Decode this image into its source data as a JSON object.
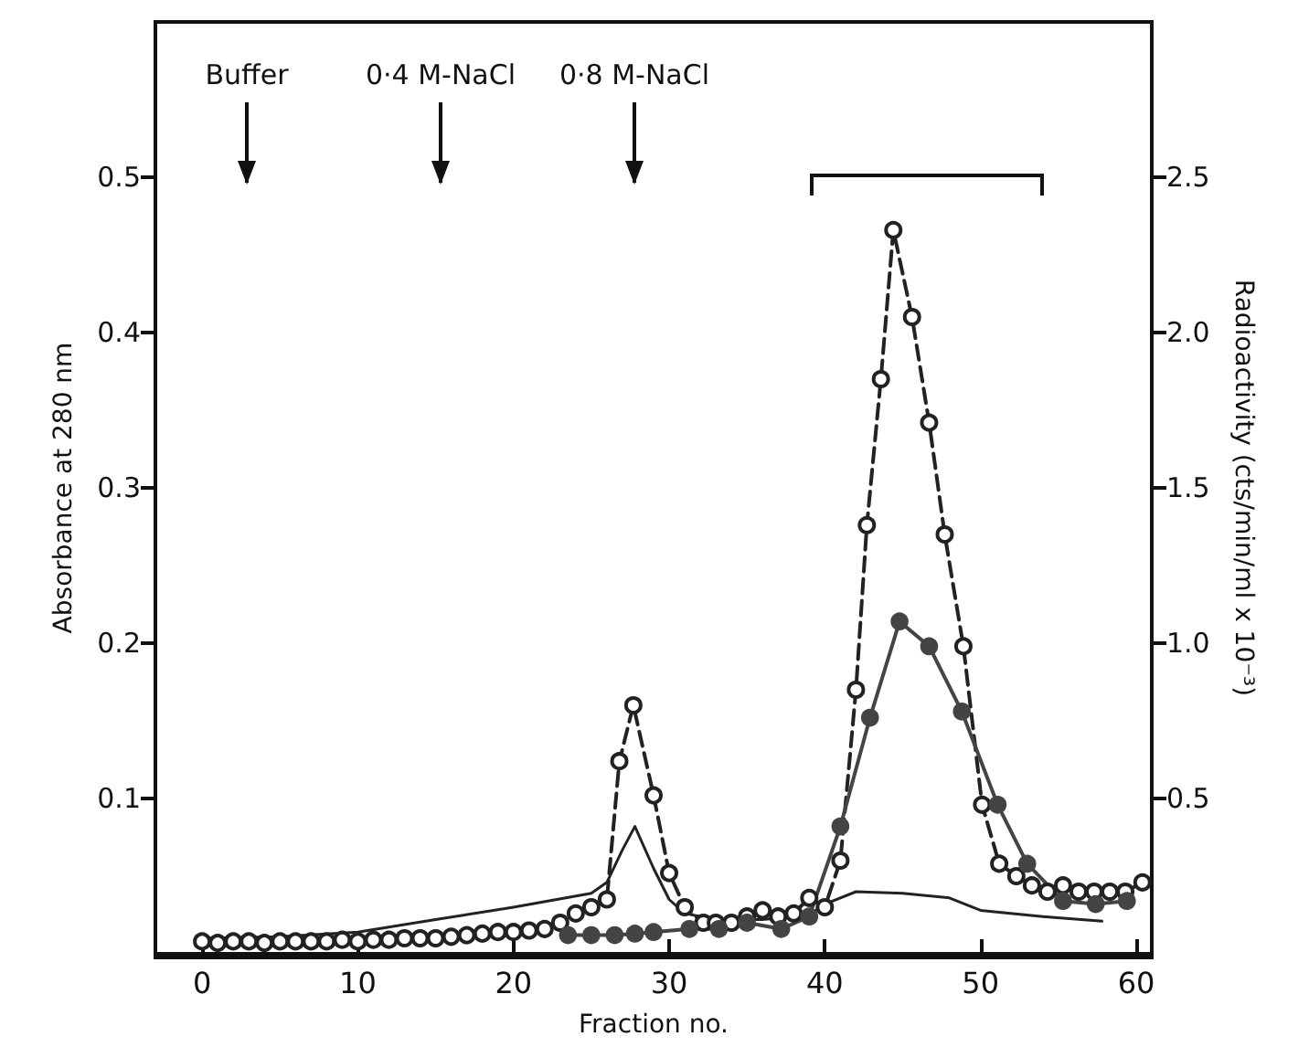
{
  "chart_data": {
    "type": "line",
    "xlabel": "Fraction no.",
    "ylabel": "Absorbance at 280 nm",
    "y2label": "Radioactivity (cts/min/ml x 10⁻³)",
    "xlim": [
      -3,
      61
    ],
    "xticks": [
      0,
      10,
      20,
      30,
      40,
      50,
      60
    ],
    "ylim": [
      0,
      0.6
    ],
    "yticks": [
      0.1,
      0.2,
      0.3,
      0.4,
      0.5
    ],
    "y2lim": [
      0,
      3
    ],
    "y2ticks": [
      0.5,
      {
        "value": 1,
        "label": "1.0"
      },
      1.5,
      {
        "value": 2,
        "label": "2.0"
      },
      2.5
    ],
    "grid": false,
    "series": [
      {
        "color": "#222222",
        "marker": "none",
        "line_style": "solid",
        "x": [
          0,
          5,
          10,
          15,
          20,
          25,
          26,
          27,
          27.8,
          29,
          30,
          31,
          33,
          36,
          39,
          40,
          42,
          45,
          48,
          50,
          54,
          57.8
        ],
        "values": [
          0.01,
          0.011,
          0.014,
          0.022,
          0.03,
          0.039,
          0.046,
          0.067,
          0.082,
          0.055,
          0.035,
          0.026,
          0.022,
          0.022,
          0.025,
          0.032,
          0.04,
          0.039,
          0.036,
          0.028,
          0.024,
          0.021
        ]
      },
      {
        "color": "#222222",
        "marker": "circle",
        "line_style": "dashed",
        "axis": "y2",
        "x": [
          0,
          1,
          2,
          3,
          4,
          5,
          6,
          7,
          8,
          9,
          10,
          11,
          12,
          13,
          14,
          15,
          16,
          17,
          18,
          19,
          20,
          21,
          22,
          23,
          24,
          25,
          26,
          26.8,
          27.7,
          29,
          30,
          31,
          32.2,
          33,
          34,
          35,
          36,
          37,
          38,
          39,
          40,
          41,
          42,
          42.7,
          43.6,
          44.4,
          45.6,
          46.7,
          47.7,
          48.9,
          50.1,
          51.2,
          52.3,
          53.3,
          54.3,
          55.3,
          56.3,
          57.3,
          58.3,
          59.3,
          60.4
        ],
        "values": [
          0.04,
          0.035,
          0.04,
          0.04,
          0.035,
          0.04,
          0.04,
          0.04,
          0.04,
          0.045,
          0.04,
          0.045,
          0.045,
          0.05,
          0.05,
          0.05,
          0.055,
          0.06,
          0.065,
          0.07,
          0.07,
          0.075,
          0.08,
          0.1,
          0.13,
          0.15,
          0.175,
          0.62,
          0.8,
          0.51,
          0.26,
          0.15,
          0.1,
          0.1,
          0.1,
          0.12,
          0.14,
          0.12,
          0.13,
          0.18,
          0.15,
          0.3,
          0.85,
          1.38,
          1.85,
          2.33,
          2.05,
          1.71,
          1.35,
          0.99,
          0.48,
          0.29,
          0.25,
          0.22,
          0.2,
          0.22,
          0.2,
          0.2,
          0.2,
          0.2,
          0.23
        ]
      },
      {
        "color": "#444444",
        "marker": "circle",
        "line_style": "solid",
        "axis": "y2",
        "x": [
          23.5,
          25,
          26.5,
          27.8,
          29,
          31.3,
          33.2,
          35,
          37.2,
          39,
          41,
          42.9,
          44.8,
          46.7,
          48.8,
          51.1,
          53,
          55.3,
          57.4,
          59.4
        ],
        "values": [
          0.06,
          0.06,
          0.06,
          0.065,
          0.07,
          0.08,
          0.08,
          0.1,
          0.08,
          0.12,
          0.41,
          0.76,
          1.07,
          0.99,
          0.78,
          0.48,
          0.29,
          0.17,
          0.16,
          0.17
        ]
      }
    ],
    "annotations": [
      "Buffer",
      "0·4 M-NaCl",
      "0·8 M-NaCl"
    ]
  }
}
